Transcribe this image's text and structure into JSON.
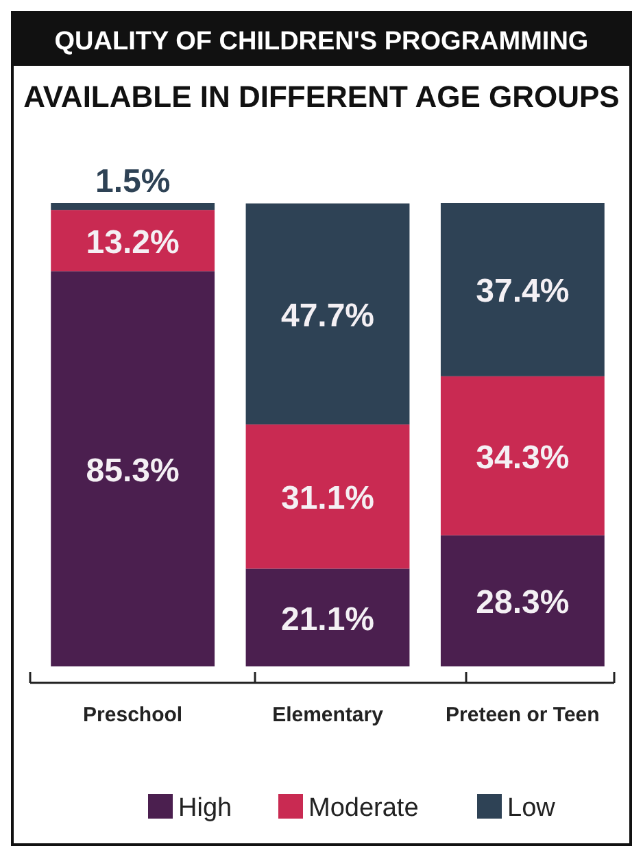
{
  "chart_data": {
    "type": "bar",
    "title": "QUALITY OF CHILDREN'S PROGRAMMING",
    "subtitle": "AVAILABLE IN DIFFERENT AGE GROUPS",
    "categories": [
      "Preschool",
      "Elementary",
      "Preteen or Teen"
    ],
    "stacked": true,
    "legend": "bottom",
    "series": [
      {
        "name": "High",
        "color": "#4b1f4f",
        "values": [
          85.3,
          21.1,
          28.3
        ],
        "value_labels": [
          "85.3%",
          "21.1%",
          "28.3%"
        ]
      },
      {
        "name": "Moderate",
        "color": "#c92a52",
        "values": [
          13.2,
          31.1,
          34.3
        ],
        "value_labels": [
          "13.2%",
          "31.1%",
          "34.3%"
        ]
      },
      {
        "name": "Low",
        "color": "#2e4255",
        "values": [
          1.5,
          47.7,
          37.4
        ],
        "value_labels": [
          "1.5%",
          "47.7%",
          "37.4%"
        ]
      }
    ]
  }
}
